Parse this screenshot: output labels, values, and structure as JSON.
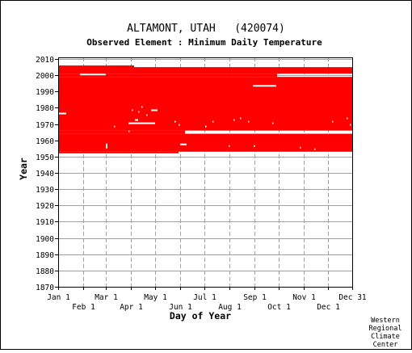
{
  "chart_data": {
    "type": "heatmap",
    "title": "ALTAMONT, UTAH   (420074)",
    "subtitle": "Observed Element : Minimum Daily Temperature",
    "xlabel": "Day of Year",
    "ylabel": "Year",
    "credit": [
      "Western",
      "Regional",
      "Climate",
      "Center"
    ],
    "xlim": [
      1,
      365
    ],
    "ylim": [
      1870,
      2011
    ],
    "y_ticks": [
      1870,
      1880,
      1890,
      1900,
      1910,
      1920,
      1930,
      1940,
      1950,
      1960,
      1970,
      1980,
      1990,
      2000,
      2010
    ],
    "x_ticks_top": [
      {
        "label": "Jan 1",
        "day": 1
      },
      {
        "label": "Mar 1",
        "day": 60
      },
      {
        "label": "May 1",
        "day": 121
      },
      {
        "label": "Jul 1",
        "day": 182
      },
      {
        "label": "Sep 1",
        "day": 244
      },
      {
        "label": "Nov 1",
        "day": 305
      },
      {
        "label": "Dec 31",
        "day": 365
      }
    ],
    "x_ticks_bottom": [
      {
        "label": "Feb 1",
        "day": 32
      },
      {
        "label": "Apr 1",
        "day": 91
      },
      {
        "label": "Jun 1",
        "day": 152
      },
      {
        "label": "Aug 1",
        "day": 213
      },
      {
        "label": "Oct 1",
        "day": 274
      },
      {
        "label": "Dec 1",
        "day": 335
      }
    ],
    "grid": true,
    "data_color": "#ff0000",
    "observed_blocks": [
      {
        "day_start": 1,
        "day_end": 365,
        "year_start": 1953,
        "year_end": 1964
      },
      {
        "day_start": 1,
        "day_end": 365,
        "year_start": 1966,
        "year_end": 1999
      },
      {
        "day_start": 1,
        "day_end": 272,
        "year_start": 1999,
        "year_end": 2001
      },
      {
        "day_start": 1,
        "day_end": 95,
        "year_start": 2001,
        "year_end": 2006
      },
      {
        "day_start": 95,
        "day_end": 365,
        "year_start": 2001,
        "year_end": 2005
      },
      {
        "day_start": 66,
        "day_end": 95,
        "year_start": 2005,
        "year_end": 2006
      },
      {
        "day_start": 1,
        "day_end": 150,
        "year_start": 1952,
        "year_end": 1953
      },
      {
        "day_start": 1,
        "day_end": 158,
        "year_start": 1964,
        "year_end": 1966
      },
      {
        "day_start": 158,
        "day_end": 365,
        "year_start": 1963,
        "year_end": 1964
      }
    ],
    "missing_blocks": [
      {
        "day_start": 1,
        "day_end": 11,
        "year_start": 1976,
        "year_end": 1977
      },
      {
        "day_start": 88,
        "day_end": 121,
        "year_start": 1970,
        "year_end": 1971
      },
      {
        "day_start": 116,
        "day_end": 124,
        "year_start": 1978,
        "year_end": 1979
      },
      {
        "day_start": 96,
        "day_end": 100,
        "year_start": 1972,
        "year_end": 1973
      },
      {
        "day_start": 152,
        "day_end": 160,
        "year_start": 1957,
        "year_end": 1958
      },
      {
        "day_start": 242,
        "day_end": 271,
        "year_start": 1993,
        "year_end": 1994
      },
      {
        "day_start": 60,
        "day_end": 62,
        "year_start": 1955,
        "year_end": 1958
      },
      {
        "day_start": 28,
        "day_end": 60,
        "year_start": 2000,
        "year_end": 2001
      }
    ],
    "missing_days": [
      {
        "day": 92,
        "year": 1978
      },
      {
        "day": 100,
        "year": 1977
      },
      {
        "day": 104,
        "year": 1980
      },
      {
        "day": 110,
        "year": 1975
      },
      {
        "day": 145,
        "year": 1971
      },
      {
        "day": 150,
        "year": 1969
      },
      {
        "day": 183,
        "year": 1968
      },
      {
        "day": 192,
        "year": 1971
      },
      {
        "day": 212,
        "year": 1956
      },
      {
        "day": 218,
        "year": 1972
      },
      {
        "day": 226,
        "year": 1973
      },
      {
        "day": 236,
        "year": 1971
      },
      {
        "day": 243,
        "year": 1956
      },
      {
        "day": 266,
        "year": 1970
      },
      {
        "day": 300,
        "year": 1955
      },
      {
        "day": 318,
        "year": 1954
      },
      {
        "day": 340,
        "year": 1971
      },
      {
        "day": 358,
        "year": 1973
      },
      {
        "day": 362,
        "year": 1969
      },
      {
        "day": 70,
        "year": 1968
      },
      {
        "day": 88,
        "year": 1965
      }
    ]
  }
}
